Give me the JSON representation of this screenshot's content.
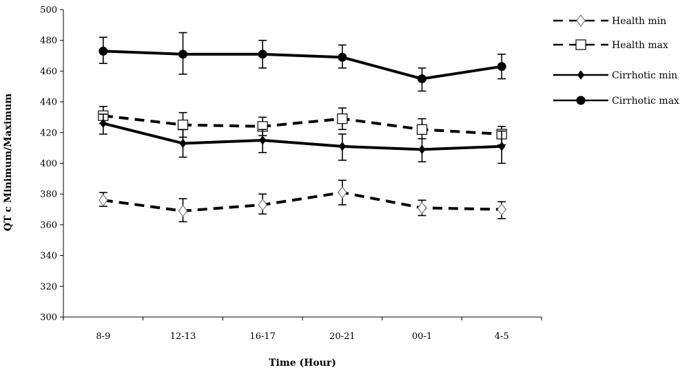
{
  "chart_data": {
    "type": "line",
    "title": "",
    "xlabel": "Time (Hour)",
    "ylabel": "QT c Minimum/Maximum",
    "categories": [
      "8-9",
      "12-13",
      "16-17",
      "20-21",
      "00-1",
      "4-5"
    ],
    "ylim": [
      300,
      500
    ],
    "yticks": [
      300,
      320,
      340,
      360,
      380,
      400,
      420,
      440,
      460,
      480,
      500
    ],
    "grid": false,
    "legend_position": "top-right",
    "series": [
      {
        "name": "Health min",
        "line": "dashed",
        "marker": "diamond-open",
        "values": [
          376,
          369,
          373,
          381,
          371,
          370
        ],
        "error": [
          [
            372,
            381
          ],
          [
            362,
            377
          ],
          [
            367,
            380
          ],
          [
            373,
            389
          ],
          [
            366,
            376
          ],
          [
            364,
            375
          ]
        ]
      },
      {
        "name": "Health max",
        "line": "dashed",
        "marker": "square-open",
        "values": [
          431,
          425,
          424,
          429,
          422,
          419
        ],
        "error": [
          [
            426,
            437
          ],
          [
            417,
            433
          ],
          [
            418,
            430
          ],
          [
            422,
            436
          ],
          [
            416,
            429
          ],
          [
            412,
            424
          ]
        ]
      },
      {
        "name": "Cirrhotic min",
        "line": "solid",
        "marker": "diamond-filled",
        "values": [
          426,
          413,
          415,
          411,
          409,
          411
        ],
        "error": [
          [
            419,
            432
          ],
          [
            404,
            422
          ],
          [
            407,
            422
          ],
          [
            402,
            419
          ],
          [
            401,
            416
          ],
          [
            400,
            421
          ]
        ]
      },
      {
        "name": "Cirrhotic max",
        "line": "solid",
        "marker": "circle-filled",
        "values": [
          473,
          471,
          471,
          469,
          455,
          463
        ],
        "error": [
          [
            465,
            482
          ],
          [
            458,
            485
          ],
          [
            462,
            480
          ],
          [
            462,
            477
          ],
          [
            447,
            462
          ],
          [
            455,
            471
          ]
        ]
      }
    ]
  }
}
